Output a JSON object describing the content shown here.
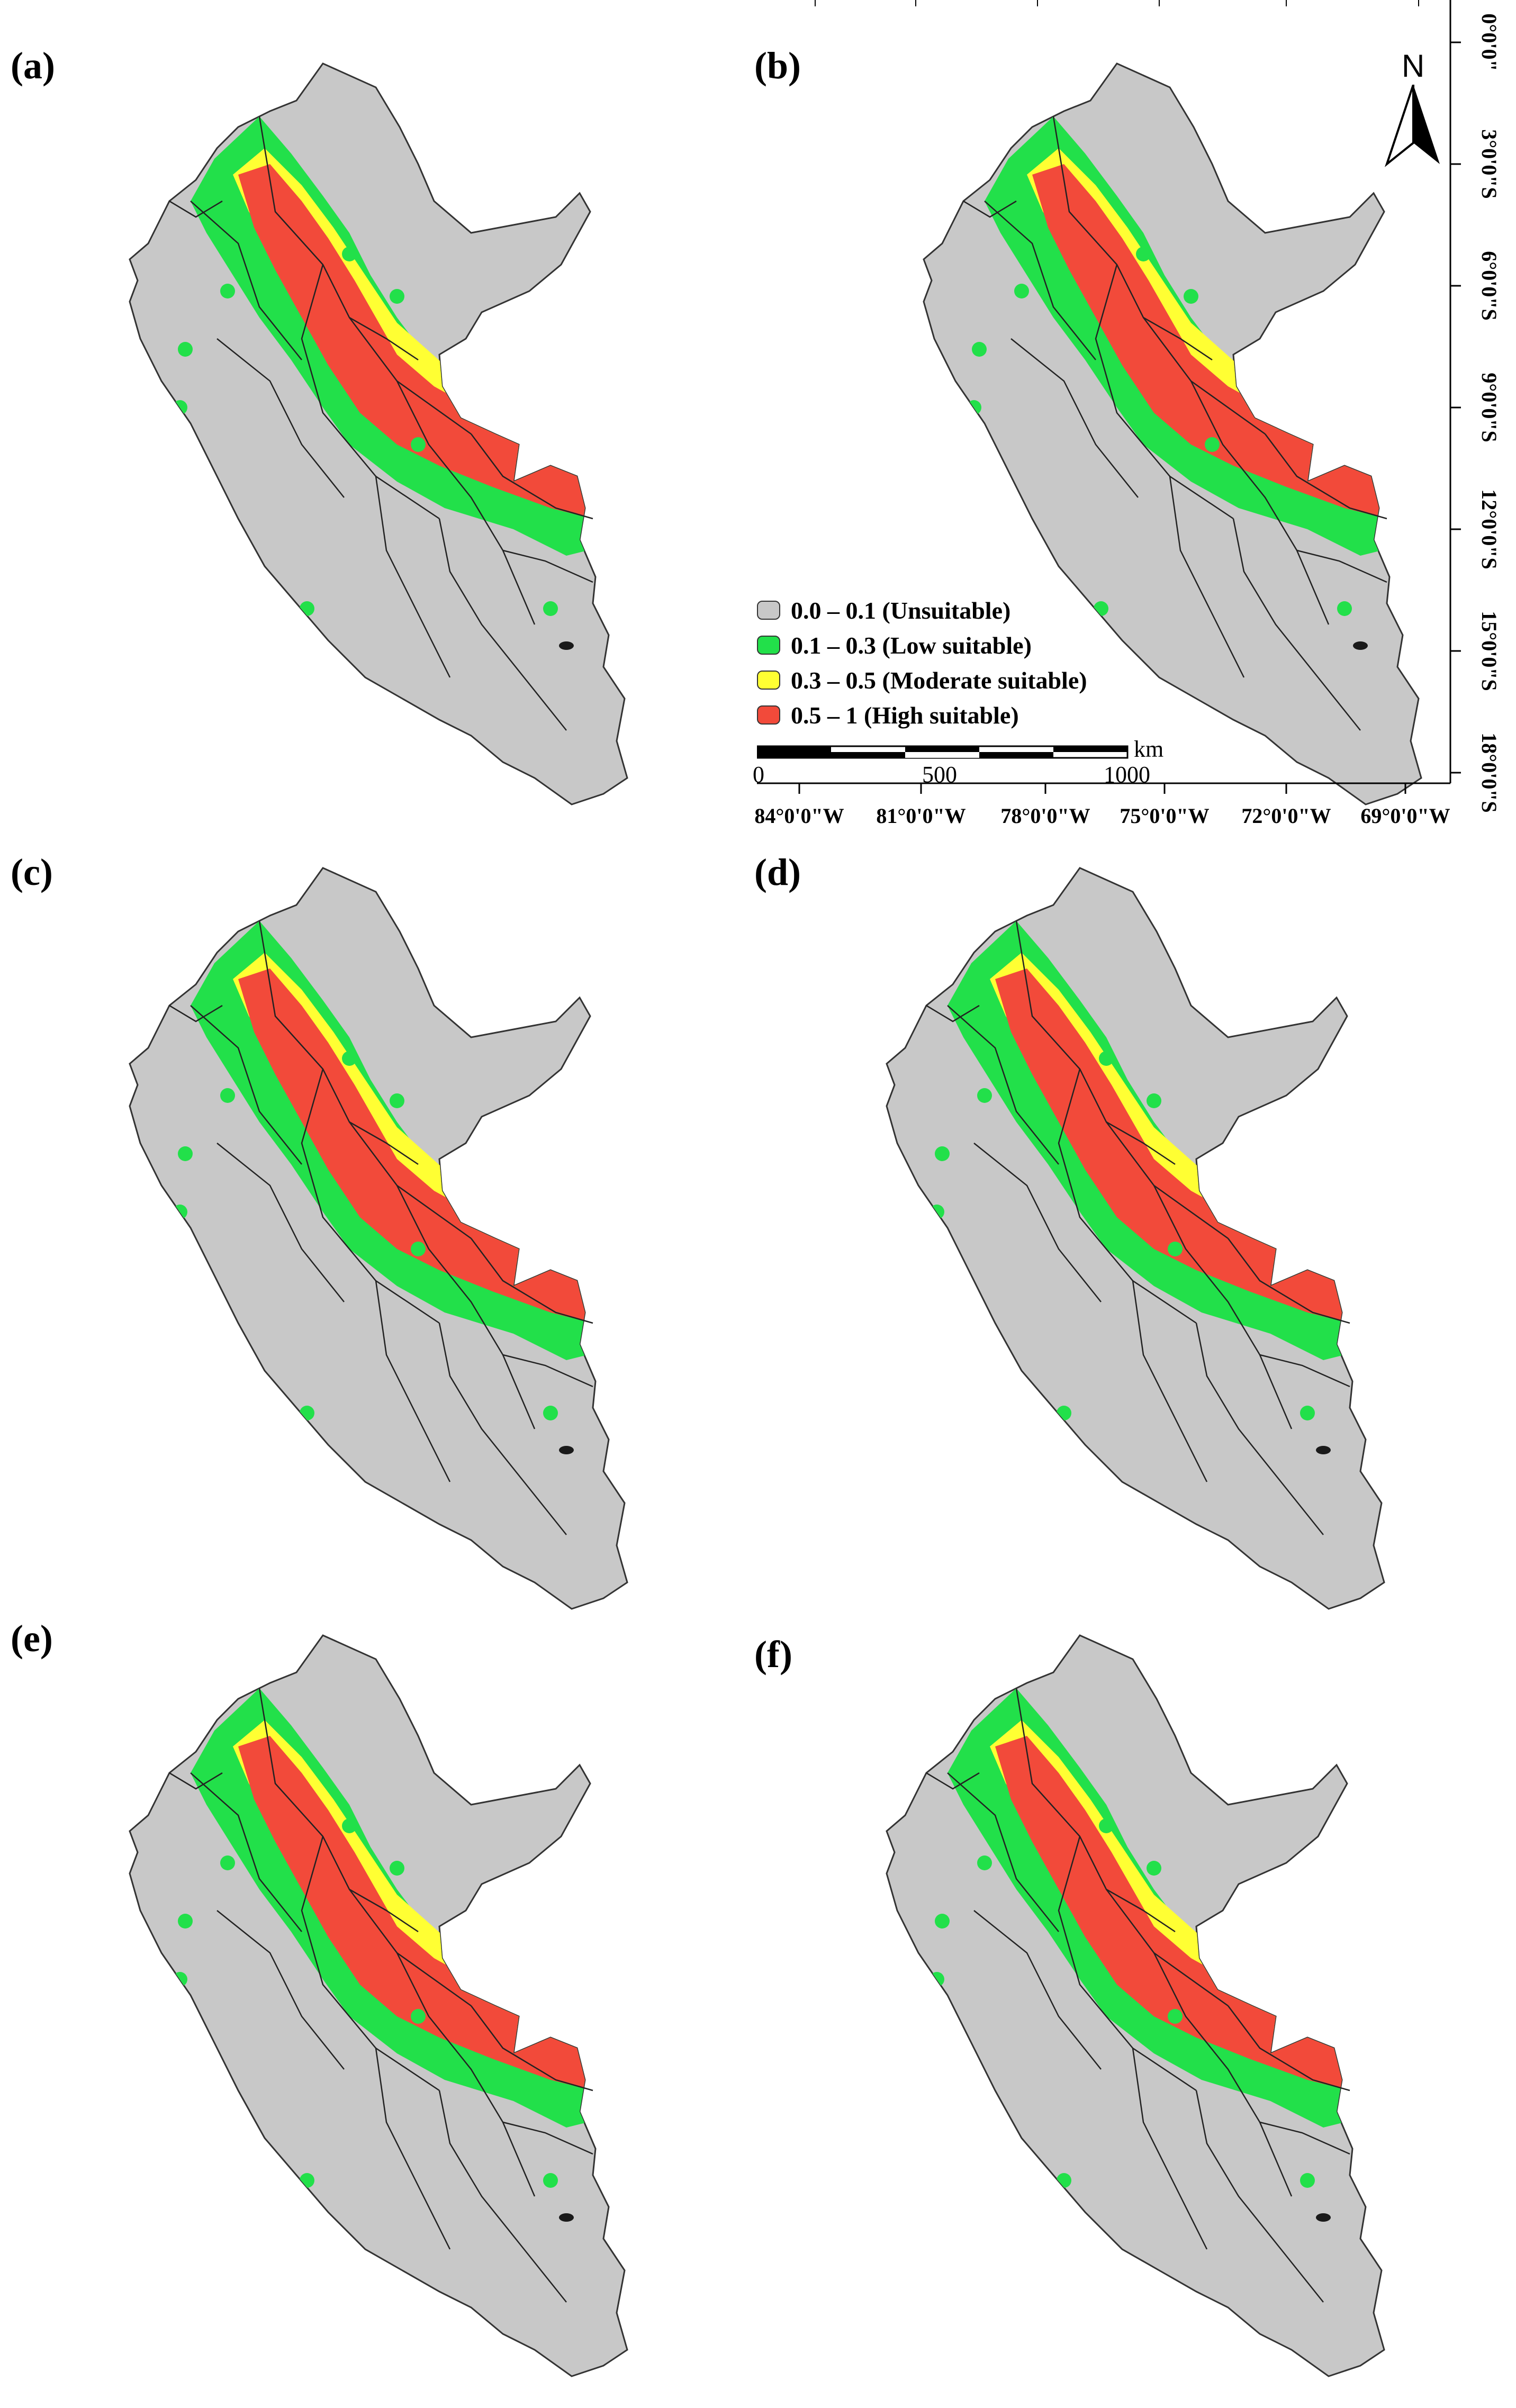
{
  "panels": [
    {
      "id": "a",
      "label": "(a)"
    },
    {
      "id": "b",
      "label": "(b)"
    },
    {
      "id": "c",
      "label": "(c)"
    },
    {
      "id": "d",
      "label": "(d)"
    },
    {
      "id": "e",
      "label": "(e)"
    },
    {
      "id": "f",
      "label": "(f)"
    }
  ],
  "north_arrow": {
    "label": "N"
  },
  "legend": {
    "items": [
      {
        "label": "0.0 – 0.1 (Unsuitable)",
        "color": "#c8c8c8"
      },
      {
        "label": "0.1 – 0.3 (Low suitable)",
        "color": "#22e04a"
      },
      {
        "label": "0.3 – 0.5 (Moderate suitable)",
        "color": "#ffff33"
      },
      {
        "label": "0.5 – 1 (High suitable)",
        "color": "#f24a3a"
      }
    ]
  },
  "scale_bar": {
    "unit": "km",
    "ticks": [
      "0",
      "500",
      "1000"
    ]
  },
  "longitude_labels": [
    "84°0'0\"W",
    "81°0'0\"W",
    "78°0'0\"W",
    "75°0'0\"W",
    "72°0'0\"W",
    "69°0'0\"W"
  ],
  "latitude_labels": [
    "0°0'0\"",
    "3°0'0\"S",
    "6°0'0\"S",
    "9°0'0\"S",
    "12°0'0\"S",
    "15°0'0\"S",
    "18°0'0\"S"
  ],
  "colors": {
    "unsuitable": "#c8c8c8",
    "low": "#22e04a",
    "moderate": "#ffff33",
    "high": "#f24a3a",
    "boundary": "#222222",
    "outline": "#333333"
  }
}
